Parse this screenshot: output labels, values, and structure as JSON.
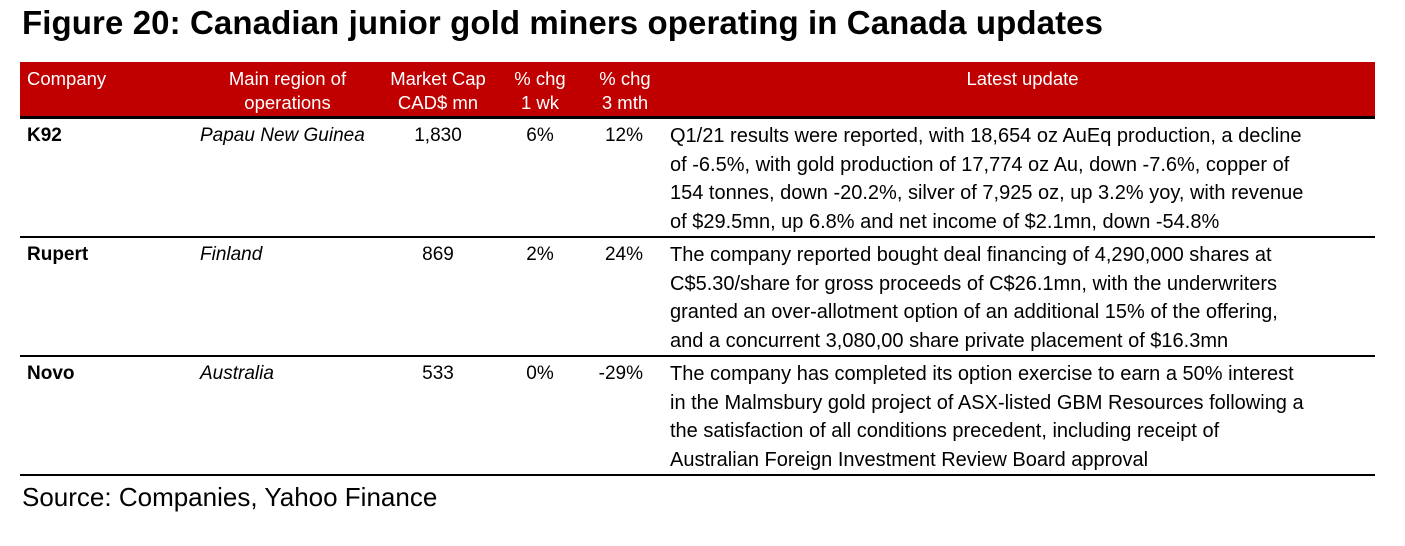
{
  "title": "Figure 20: Canadian junior gold miners operating in Canada updates",
  "header": {
    "company": "Company",
    "region_1": "Main region of",
    "region_2": "operations",
    "mcap_1": "Market Cap",
    "mcap_2": "CAD$ mn",
    "wk_1": "% chg",
    "wk_2": "1 wk",
    "mth_1": "% chg",
    "mth_2": "3 mth",
    "update": "Latest update"
  },
  "rows": [
    {
      "company": "K92",
      "region": "Papau New Guinea",
      "mcap": "1,830",
      "wk": "6%",
      "mth": "12%",
      "update": [
        "Q1/21 results were reported, with 18,654 oz AuEq production, a decline",
        "of -6.5%, with gold production of 17,774 oz Au, down -7.6%, copper of",
        "154 tonnes, down -20.2%, silver of 7,925 oz, up 3.2% yoy, with revenue",
        "of $29.5mn, up 6.8% and net income of $2.1mn, down -54.8%"
      ]
    },
    {
      "company": "Rupert",
      "region": "Finland",
      "mcap": "869",
      "wk": "2%",
      "mth": "24%",
      "update": [
        "The company reported bought deal financing of 4,290,000 shares at",
        "C$5.30/share for gross proceeds of C$26.1mn, with the underwriters",
        "granted an over-allotment option of an additional 15% of the offering,",
        "and a concurrent 3,080,00 share private placement of $16.3mn"
      ]
    },
    {
      "company": "Novo",
      "region": "Australia",
      "mcap": "533",
      "wk": "0%",
      "mth": "-29%",
      "update": [
        "The company has completed its option exercise to earn a 50% interest",
        "in the Malmsbury gold project of ASX-listed GBM Resources following a",
        "the satisfaction of all conditions precedent, including receipt of",
        "Australian Foreign Investment Review Board approval"
      ]
    }
  ],
  "source": "Source: Companies, Yahoo Finance"
}
